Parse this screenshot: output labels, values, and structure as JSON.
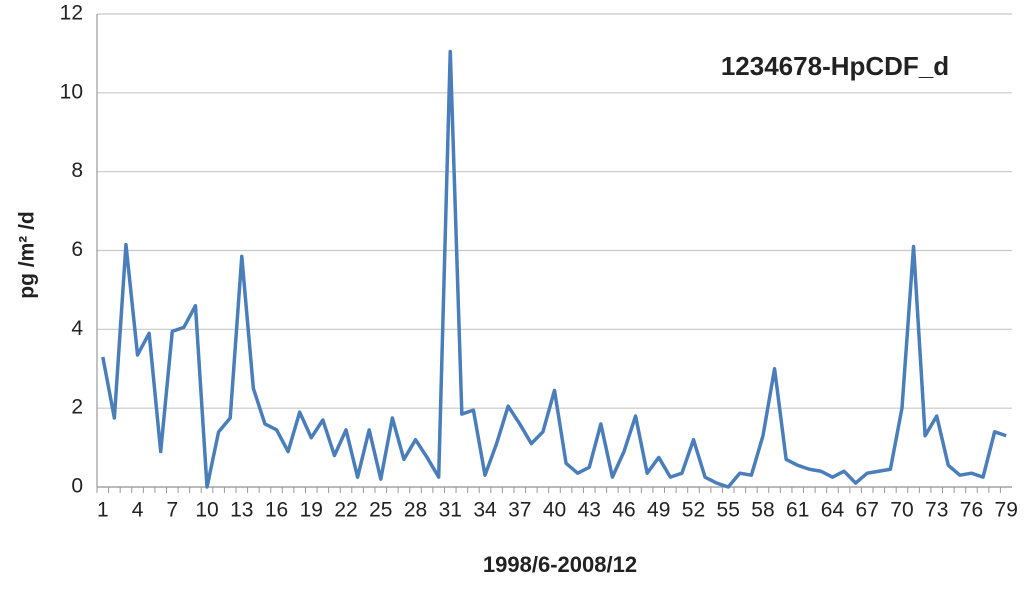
{
  "chart_data": {
    "type": "line",
    "title": "1234678-HpCDF_d",
    "x_label": "1998/6-2008/12",
    "y_label": "pg /m² /d",
    "categories": [
      "1",
      null,
      null,
      "4",
      null,
      null,
      "7",
      null,
      null,
      "10",
      null,
      null,
      "13",
      null,
      null,
      "16",
      null,
      null,
      "19",
      null,
      null,
      "22",
      null,
      null,
      "25",
      null,
      null,
      "28",
      null,
      null,
      "31",
      null,
      null,
      "34",
      null,
      null,
      "37",
      null,
      null,
      "40",
      null,
      null,
      "43",
      null,
      null,
      "46",
      null,
      null,
      "49",
      null,
      null,
      "52",
      null,
      null,
      "55",
      null,
      null,
      "58",
      null,
      null,
      "61",
      null,
      null,
      "64",
      null,
      null,
      "67",
      null,
      null,
      "70",
      null,
      null,
      "73",
      null,
      null,
      "76",
      null,
      null,
      "79"
    ],
    "series": [
      {
        "name": "1234678-HpCDF_d",
        "color": "#4a7ebb",
        "values": [
          3.3,
          1.75,
          6.15,
          3.35,
          3.9,
          0.9,
          3.95,
          4.05,
          4.6,
          0.0,
          1.4,
          1.75,
          5.85,
          2.5,
          1.6,
          1.45,
          0.9,
          1.9,
          1.25,
          1.7,
          0.8,
          1.45,
          0.25,
          1.45,
          0.2,
          1.75,
          0.7,
          1.2,
          0.75,
          0.25,
          11.05,
          1.85,
          1.95,
          0.3,
          1.1,
          2.05,
          1.6,
          1.1,
          1.4,
          2.45,
          0.6,
          0.35,
          0.5,
          1.6,
          0.25,
          0.9,
          1.8,
          0.35,
          0.75,
          0.25,
          0.35,
          1.2,
          0.25,
          0.1,
          0.0,
          0.35,
          0.3,
          1.3,
          3.0,
          0.7,
          0.55,
          0.45,
          0.4,
          0.25,
          0.4,
          0.1,
          0.35,
          0.4,
          0.45,
          2.0,
          6.1,
          1.3,
          1.8,
          0.55,
          0.3,
          0.35,
          0.25,
          1.4,
          1.3
        ]
      }
    ],
    "ylim": [
      0,
      12
    ],
    "yticks": [
      0,
      2,
      4,
      6,
      8,
      10,
      12
    ],
    "grid": true
  }
}
